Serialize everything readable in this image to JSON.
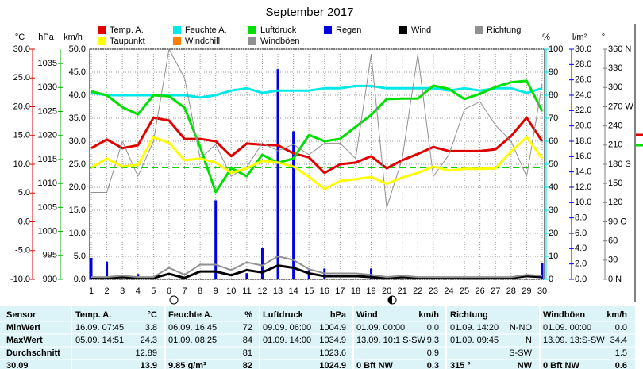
{
  "chart_data": {
    "type": "line",
    "title": "September 2017",
    "categories": [
      "1",
      "2",
      "3",
      "4",
      "5",
      "6",
      "7",
      "8",
      "9",
      "10",
      "11",
      "12",
      "13",
      "14",
      "15",
      "16",
      "17",
      "18",
      "19",
      "20",
      "21",
      "22",
      "23",
      "24",
      "25",
      "26",
      "27",
      "28",
      "29",
      "30"
    ],
    "grid": true,
    "axes": {
      "temp": {
        "label": "°C",
        "color": "#e00000",
        "ylim": [
          -10,
          30
        ],
        "yticks": [
          {
            "value": -10,
            "label": "-10.0"
          },
          {
            "value": -5,
            "label": "-5.0"
          },
          {
            "value": 0,
            "label": "0.0"
          },
          {
            "value": 5,
            "label": "5.0"
          },
          {
            "value": 10,
            "label": "10.0"
          },
          {
            "value": 15,
            "label": "15.0"
          },
          {
            "value": 20,
            "label": "20.0"
          },
          {
            "value": 25,
            "label": "25.0"
          },
          {
            "value": 30,
            "label": "30.0"
          }
        ]
      },
      "hpa": {
        "label": "hPa",
        "color": "#00b000",
        "ylim": [
          990,
          1038
        ],
        "yticks": [
          990,
          995,
          1000,
          1005,
          1010,
          1015,
          1020,
          1025,
          1030,
          1035
        ]
      },
      "kmh": {
        "label": "km/h",
        "color": "#000000",
        "ylim": [
          0,
          50
        ],
        "yticks": [
          {
            "value": 0,
            "label": "0.0"
          },
          {
            "value": 5,
            "label": "5.0"
          },
          {
            "value": 10,
            "label": "10.0"
          },
          {
            "value": 15,
            "label": "15.0"
          },
          {
            "value": 20,
            "label": "20.0"
          },
          {
            "value": 25,
            "label": "25.0"
          },
          {
            "value": 30,
            "label": "30.0"
          },
          {
            "value": 35,
            "label": "35.0"
          },
          {
            "value": 40,
            "label": "40.0"
          },
          {
            "value": 45,
            "label": "45.0"
          },
          {
            "value": 50,
            "label": "50.0"
          }
        ]
      },
      "pct": {
        "label": "%",
        "color": "#00d8d8",
        "ylim": [
          0,
          100
        ],
        "yticks": [
          0,
          10,
          20,
          30,
          40,
          50,
          60,
          70,
          80,
          90,
          100
        ]
      },
      "rain": {
        "label": "l/m²",
        "color": "#0000e0",
        "ylim": [
          0,
          30
        ],
        "yticks": [
          {
            "value": 0,
            "label": "0.0"
          },
          {
            "value": 2,
            "label": "2.0"
          },
          {
            "value": 4,
            "label": "4.0"
          },
          {
            "value": 6,
            "label": "6.0"
          },
          {
            "value": 8,
            "label": "8.0"
          },
          {
            "value": 10,
            "label": "10.0"
          },
          {
            "value": 12,
            "label": "12.0"
          },
          {
            "value": 14,
            "label": "14.0"
          },
          {
            "value": 16,
            "label": "16.0"
          },
          {
            "value": 18,
            "label": "18.0"
          },
          {
            "value": 20,
            "label": "20.0"
          },
          {
            "value": 22,
            "label": "22.0"
          },
          {
            "value": 24,
            "label": "24.0"
          },
          {
            "value": 26,
            "label": "26.0"
          },
          {
            "value": 28,
            "label": "28.0"
          },
          {
            "value": 30,
            "label": "30.0"
          }
        ]
      },
      "dir": {
        "label": "°",
        "color": "#808080",
        "ylim": [
          0,
          360
        ],
        "yticks": [
          {
            "value": 0,
            "label": "0 N"
          },
          30,
          60,
          {
            "value": 90,
            "label": "90 O"
          },
          120,
          150,
          {
            "value": 180,
            "label": "180 S"
          },
          210,
          240,
          {
            "value": 270,
            "label": "270 W"
          },
          300,
          330,
          {
            "value": 360,
            "label": "360 N"
          }
        ]
      }
    },
    "reference_lines": [
      {
        "axis": "hpa",
        "value": 1013.25,
        "color": "#00d000"
      }
    ],
    "series": [
      {
        "name": "Temp. A.",
        "color": "#e00000",
        "label_color": "#e00000",
        "axis": "temp",
        "width": 3,
        "values": [
          12.8,
          14.3,
          12.8,
          13.3,
          18.1,
          17.6,
          14.4,
          14.4,
          14.0,
          11.4,
          13.6,
          13.4,
          13.3,
          11.9,
          11.2,
          8.5,
          10.0,
          10.3,
          11.4,
          9.3,
          10.7,
          11.8,
          13.0,
          12.3,
          12.3,
          12.3,
          12.6,
          14.9,
          18.1,
          14.0
        ]
      },
      {
        "name": "Feuchte A.",
        "color": "#00e8e8",
        "label_color": "#00d8d8",
        "axis": "pct",
        "width": 3,
        "values": [
          81,
          80,
          80,
          80,
          80,
          80,
          80,
          79,
          80,
          82,
          83,
          81,
          82,
          82,
          82,
          83,
          83,
          84,
          84,
          83,
          83,
          83,
          83,
          82,
          83,
          82,
          83,
          83,
          81,
          83
        ]
      },
      {
        "name": "Luftdruck",
        "color": "#00e000",
        "label_color": "#00b000",
        "axis": "hpa",
        "width": 3,
        "values": [
          1029.2,
          1028.4,
          1025.9,
          1024.4,
          1028.4,
          1028.2,
          1025.8,
          1017.6,
          1008.2,
          1013.2,
          1011.5,
          1016.0,
          1014.3,
          1015.2,
          1020.1,
          1018.8,
          1019.3,
          1021.8,
          1024.3,
          1027.6,
          1027.7,
          1027.7,
          1030.4,
          1029.7,
          1027.6,
          1028.7,
          1030.1,
          1031.1,
          1031.4,
          1025.1
        ]
      },
      {
        "name": "Regen",
        "color": "#0000e0",
        "label_color": "#0000e0",
        "axis": "rain",
        "mark": "bar",
        "values": [
          2.8,
          2.3,
          0,
          0.7,
          0,
          0,
          0,
          0,
          10.3,
          0,
          0.8,
          4.1,
          27.4,
          19.3,
          1.2,
          1.4,
          0,
          0,
          1.4,
          0,
          0,
          0,
          0,
          0,
          0,
          0,
          0,
          0,
          0,
          2.1
        ]
      },
      {
        "name": "Wind",
        "color": "#000000",
        "label_color": "#000000",
        "axis": "kmh",
        "width": 3,
        "values": [
          0.3,
          0.3,
          0.5,
          0.3,
          0.3,
          1.2,
          0.3,
          1.7,
          1.7,
          0.9,
          2.0,
          1.5,
          3.0,
          2.5,
          1.3,
          0.7,
          0.7,
          0.7,
          0.5,
          0.2,
          0.5,
          0.3,
          0.3,
          0.3,
          0.2,
          0.2,
          0.3,
          0.3,
          0.7,
          0.5
        ]
      },
      {
        "name": "Richtung",
        "color": "#909090",
        "label_color": "#808080",
        "axis": "dir",
        "width": 1,
        "values": [
          136,
          136,
          216,
          161,
          216,
          360,
          315,
          189,
          211,
          161,
          176,
          213,
          201,
          211,
          195,
          213,
          213,
          189,
          352,
          112,
          189,
          352,
          161,
          195,
          266,
          278,
          241,
          216,
          161,
          306
        ]
      },
      {
        "name": "Taupunkt",
        "color": "#ffff00",
        "label_color": "#e00000",
        "axis": "temp",
        "width": 3,
        "values": [
          9.4,
          11.0,
          9.6,
          9.9,
          14.7,
          13.7,
          10.7,
          11.0,
          10.3,
          8.5,
          9.3,
          10.6,
          10.3,
          9.6,
          7.8,
          5.7,
          7.1,
          7.4,
          7.8,
          6.6,
          7.7,
          8.5,
          9.6,
          8.9,
          9.2,
          9.2,
          9.3,
          12.2,
          14.7,
          11.0
        ]
      },
      {
        "name": "Windchill",
        "color": "#ff8000",
        "label_color": "#e00000",
        "axis": "temp",
        "width": 3,
        "values": [
          null,
          null,
          null,
          null,
          null,
          null,
          null,
          null,
          null,
          null,
          null,
          null,
          null,
          null,
          null,
          null,
          null,
          null,
          null,
          null,
          null,
          null,
          null,
          null,
          null,
          null,
          null,
          null,
          null,
          null
        ]
      },
      {
        "name": "Windböen",
        "color": "#909090",
        "label_color": "#000000",
        "axis": "kmh",
        "width": 2,
        "values": [
          0.5,
          0.5,
          0.8,
          0.5,
          0.5,
          2.5,
          1.0,
          3.2,
          3.2,
          2.0,
          3.7,
          3.0,
          5.0,
          4.2,
          2.2,
          1.3,
          1.3,
          1.3,
          1.0,
          0.5,
          0.8,
          0.5,
          0.5,
          0.5,
          0.5,
          0.5,
          0.5,
          0.5,
          1.0,
          0.8
        ]
      }
    ]
  },
  "table": {
    "header": [
      "Sensor",
      "Temp. A.",
      "°C",
      "Feuchte A.",
      "%",
      "Luftdruck",
      "hPa",
      "Wind",
      "km/h",
      "Richtung",
      null,
      "Windböen",
      "km/h"
    ],
    "rows": [
      [
        "MinWert",
        "16.09. 07:45",
        "3.8",
        "06.09. 16:45",
        "72",
        "09.09. 06:00",
        "1004.9",
        "01.09. 00:00",
        "0.0",
        "01.09. 14:20",
        "N-NO",
        "01.09. 00:00",
        "0.0"
      ],
      [
        "MaxWert",
        "05.09. 14:51",
        "24.3",
        "01.09. 08:25",
        "84",
        "01.09. 14:00",
        "1034.9",
        "13.09. 10:1 S-SW",
        "9.3",
        "01.09. 09:45",
        "N",
        "13.09. 13:S-SW",
        "34.4"
      ],
      [
        "Durchschnitt",
        null,
        "12.89",
        null,
        "81",
        null,
        "1023.6",
        null,
        "0.9",
        null,
        "S-SW",
        null,
        "1.5"
      ],
      [
        "30.09",
        null,
        "13.9",
        "9.85 g/m³",
        "82",
        null,
        "1024.9",
        "0 Bft NW",
        "0.3",
        "315 °",
        "NW",
        "0 Bft NW",
        "0.6"
      ]
    ]
  }
}
